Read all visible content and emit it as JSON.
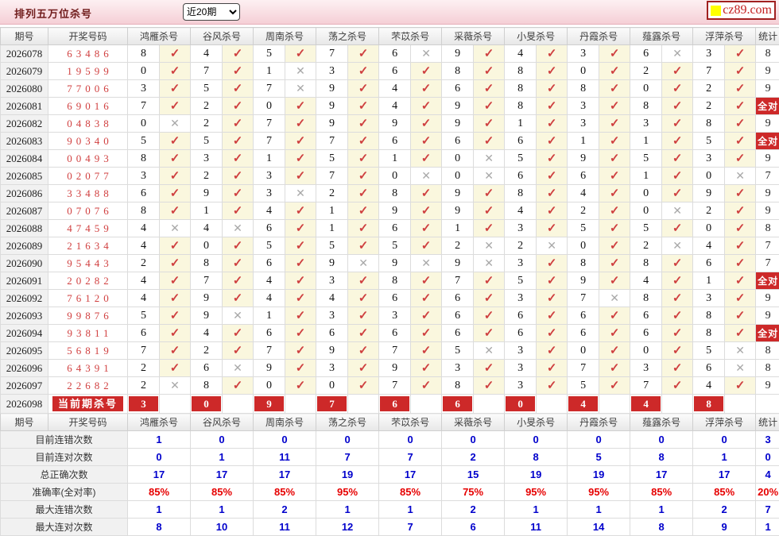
{
  "header_bar": {
    "title": "排列五万位杀号",
    "range_value": "近20期",
    "logo_text": "cz89.com"
  },
  "icons": {
    "check": "✓",
    "cross": "✕"
  },
  "colors": {
    "accent_red": "#cd2929",
    "check_red": "#cf4040",
    "cross_gray": "#a8a8a8",
    "value_blue": "#0000cc",
    "rate_red": "#e60000",
    "win_number_red": "#d14040",
    "topbar_pink": "#f5cfd6",
    "check_cell_cream": "#faf7de",
    "logo_yellow": "#ffff00"
  },
  "table": {
    "period_label": "期号",
    "number_label": "开奖号码",
    "kill_headers": [
      "鸿雁杀号",
      "谷风杀号",
      "周南杀号",
      "荡之杀号",
      "芣苡杀号",
      "采薇杀号",
      "小旻杀号",
      "丹霞杀号",
      "薤露杀号",
      "浮萍杀号"
    ],
    "stat_label": "统计",
    "all_correct_label": "全对",
    "rows": [
      {
        "period": "2026078",
        "number": "63486",
        "kills": [
          [
            8,
            1
          ],
          [
            4,
            1
          ],
          [
            5,
            1
          ],
          [
            7,
            1
          ],
          [
            6,
            0
          ],
          [
            9,
            1
          ],
          [
            4,
            1
          ],
          [
            3,
            1
          ],
          [
            6,
            0
          ],
          [
            3,
            1
          ]
        ],
        "stat": "8"
      },
      {
        "period": "2026079",
        "number": "19599",
        "kills": [
          [
            0,
            1
          ],
          [
            7,
            1
          ],
          [
            1,
            0
          ],
          [
            3,
            1
          ],
          [
            6,
            1
          ],
          [
            8,
            1
          ],
          [
            8,
            1
          ],
          [
            0,
            1
          ],
          [
            2,
            1
          ],
          [
            7,
            1
          ]
        ],
        "stat": "9"
      },
      {
        "period": "2026080",
        "number": "77006",
        "kills": [
          [
            3,
            1
          ],
          [
            5,
            1
          ],
          [
            7,
            0
          ],
          [
            9,
            1
          ],
          [
            4,
            1
          ],
          [
            6,
            1
          ],
          [
            8,
            1
          ],
          [
            8,
            1
          ],
          [
            0,
            1
          ],
          [
            2,
            1
          ]
        ],
        "stat": "9"
      },
      {
        "period": "2026081",
        "number": "69016",
        "kills": [
          [
            7,
            1
          ],
          [
            2,
            1
          ],
          [
            0,
            1
          ],
          [
            9,
            1
          ],
          [
            4,
            1
          ],
          [
            9,
            1
          ],
          [
            8,
            1
          ],
          [
            3,
            1
          ],
          [
            8,
            1
          ],
          [
            2,
            1
          ]
        ],
        "stat": "全对"
      },
      {
        "period": "2026082",
        "number": "04838",
        "kills": [
          [
            0,
            0
          ],
          [
            2,
            1
          ],
          [
            7,
            1
          ],
          [
            9,
            1
          ],
          [
            9,
            1
          ],
          [
            9,
            1
          ],
          [
            1,
            1
          ],
          [
            3,
            1
          ],
          [
            3,
            1
          ],
          [
            8,
            1
          ]
        ],
        "stat": "9"
      },
      {
        "period": "2026083",
        "number": "90340",
        "kills": [
          [
            5,
            1
          ],
          [
            5,
            1
          ],
          [
            7,
            1
          ],
          [
            7,
            1
          ],
          [
            6,
            1
          ],
          [
            6,
            1
          ],
          [
            6,
            1
          ],
          [
            1,
            1
          ],
          [
            1,
            1
          ],
          [
            5,
            1
          ]
        ],
        "stat": "全对"
      },
      {
        "period": "2026084",
        "number": "00493",
        "kills": [
          [
            8,
            1
          ],
          [
            3,
            1
          ],
          [
            1,
            1
          ],
          [
            5,
            1
          ],
          [
            1,
            1
          ],
          [
            0,
            0
          ],
          [
            5,
            1
          ],
          [
            9,
            1
          ],
          [
            5,
            1
          ],
          [
            3,
            1
          ]
        ],
        "stat": "9"
      },
      {
        "period": "2026085",
        "number": "02077",
        "kills": [
          [
            3,
            1
          ],
          [
            2,
            1
          ],
          [
            3,
            1
          ],
          [
            7,
            1
          ],
          [
            0,
            0
          ],
          [
            0,
            0
          ],
          [
            6,
            1
          ],
          [
            6,
            1
          ],
          [
            1,
            1
          ],
          [
            0,
            0
          ]
        ],
        "stat": "7"
      },
      {
        "period": "2026086",
        "number": "33488",
        "kills": [
          [
            6,
            1
          ],
          [
            9,
            1
          ],
          [
            3,
            0
          ],
          [
            2,
            1
          ],
          [
            8,
            1
          ],
          [
            9,
            1
          ],
          [
            8,
            1
          ],
          [
            4,
            1
          ],
          [
            0,
            1
          ],
          [
            9,
            1
          ]
        ],
        "stat": "9"
      },
      {
        "period": "2026087",
        "number": "07076",
        "kills": [
          [
            8,
            1
          ],
          [
            1,
            1
          ],
          [
            4,
            1
          ],
          [
            1,
            1
          ],
          [
            9,
            1
          ],
          [
            9,
            1
          ],
          [
            4,
            1
          ],
          [
            2,
            1
          ],
          [
            0,
            0
          ],
          [
            2,
            1
          ]
        ],
        "stat": "9"
      },
      {
        "period": "2026088",
        "number": "47459",
        "kills": [
          [
            4,
            0
          ],
          [
            4,
            0
          ],
          [
            6,
            1
          ],
          [
            1,
            1
          ],
          [
            6,
            1
          ],
          [
            1,
            1
          ],
          [
            3,
            1
          ],
          [
            5,
            1
          ],
          [
            5,
            1
          ],
          [
            0,
            1
          ]
        ],
        "stat": "8"
      },
      {
        "period": "2026089",
        "number": "21634",
        "kills": [
          [
            4,
            1
          ],
          [
            0,
            1
          ],
          [
            5,
            1
          ],
          [
            5,
            1
          ],
          [
            5,
            1
          ],
          [
            2,
            0
          ],
          [
            2,
            0
          ],
          [
            0,
            1
          ],
          [
            2,
            0
          ],
          [
            4,
            1
          ]
        ],
        "stat": "7"
      },
      {
        "period": "2026090",
        "number": "95443",
        "kills": [
          [
            2,
            1
          ],
          [
            8,
            1
          ],
          [
            6,
            1
          ],
          [
            9,
            0
          ],
          [
            9,
            0
          ],
          [
            9,
            0
          ],
          [
            3,
            1
          ],
          [
            8,
            1
          ],
          [
            8,
            1
          ],
          [
            6,
            1
          ]
        ],
        "stat": "7"
      },
      {
        "period": "2026091",
        "number": "20282",
        "kills": [
          [
            4,
            1
          ],
          [
            7,
            1
          ],
          [
            4,
            1
          ],
          [
            3,
            1
          ],
          [
            8,
            1
          ],
          [
            7,
            1
          ],
          [
            5,
            1
          ],
          [
            9,
            1
          ],
          [
            4,
            1
          ],
          [
            1,
            1
          ]
        ],
        "stat": "全对"
      },
      {
        "period": "2026092",
        "number": "76120",
        "kills": [
          [
            4,
            1
          ],
          [
            9,
            1
          ],
          [
            4,
            1
          ],
          [
            4,
            1
          ],
          [
            6,
            1
          ],
          [
            6,
            1
          ],
          [
            3,
            1
          ],
          [
            7,
            0
          ],
          [
            8,
            1
          ],
          [
            3,
            1
          ]
        ],
        "stat": "9"
      },
      {
        "period": "2026093",
        "number": "99876",
        "kills": [
          [
            5,
            1
          ],
          [
            9,
            0
          ],
          [
            1,
            1
          ],
          [
            3,
            1
          ],
          [
            3,
            1
          ],
          [
            6,
            1
          ],
          [
            6,
            1
          ],
          [
            6,
            1
          ],
          [
            6,
            1
          ],
          [
            8,
            1
          ]
        ],
        "stat": "9"
      },
      {
        "period": "2026094",
        "number": "93811",
        "kills": [
          [
            6,
            1
          ],
          [
            4,
            1
          ],
          [
            6,
            1
          ],
          [
            6,
            1
          ],
          [
            6,
            1
          ],
          [
            6,
            1
          ],
          [
            6,
            1
          ],
          [
            6,
            1
          ],
          [
            6,
            1
          ],
          [
            8,
            1
          ]
        ],
        "stat": "全对"
      },
      {
        "period": "2026095",
        "number": "56819",
        "kills": [
          [
            7,
            1
          ],
          [
            2,
            1
          ],
          [
            7,
            1
          ],
          [
            9,
            1
          ],
          [
            7,
            1
          ],
          [
            5,
            0
          ],
          [
            3,
            1
          ],
          [
            0,
            1
          ],
          [
            0,
            1
          ],
          [
            5,
            0
          ]
        ],
        "stat": "8"
      },
      {
        "period": "2026096",
        "number": "64391",
        "kills": [
          [
            2,
            1
          ],
          [
            6,
            0
          ],
          [
            9,
            1
          ],
          [
            3,
            1
          ],
          [
            9,
            1
          ],
          [
            3,
            1
          ],
          [
            3,
            1
          ],
          [
            7,
            1
          ],
          [
            3,
            1
          ],
          [
            6,
            0
          ]
        ],
        "stat": "8"
      },
      {
        "period": "2026097",
        "number": "22682",
        "kills": [
          [
            2,
            0
          ],
          [
            8,
            1
          ],
          [
            0,
            1
          ],
          [
            0,
            1
          ],
          [
            7,
            1
          ],
          [
            8,
            1
          ],
          [
            3,
            1
          ],
          [
            5,
            1
          ],
          [
            7,
            1
          ],
          [
            4,
            1
          ]
        ],
        "stat": "9"
      }
    ],
    "current_row": {
      "period": "2026098",
      "label": "当前期杀号",
      "kills": [
        3,
        0,
        9,
        7,
        6,
        6,
        0,
        4,
        4,
        8
      ]
    },
    "summary": [
      {
        "label": "目前连错次数",
        "values": [
          "1",
          "0",
          "0",
          "0",
          "0",
          "0",
          "0",
          "0",
          "0",
          "0"
        ],
        "stat": "3",
        "red": false
      },
      {
        "label": "目前连对次数",
        "values": [
          "0",
          "1",
          "11",
          "7",
          "7",
          "2",
          "8",
          "5",
          "8",
          "1"
        ],
        "stat": "0",
        "red": false
      },
      {
        "label": "总正确次数",
        "values": [
          "17",
          "17",
          "17",
          "19",
          "17",
          "15",
          "19",
          "19",
          "17",
          "17"
        ],
        "stat": "4",
        "red": false
      },
      {
        "label": "准确率(全对率)",
        "values": [
          "85%",
          "85%",
          "85%",
          "95%",
          "85%",
          "75%",
          "95%",
          "95%",
          "85%",
          "85%"
        ],
        "stat": "20%",
        "red": true
      },
      {
        "label": "最大连错次数",
        "values": [
          "1",
          "1",
          "2",
          "1",
          "1",
          "2",
          "1",
          "1",
          "1",
          "2"
        ],
        "stat": "7",
        "red": false
      },
      {
        "label": "最大连对次数",
        "values": [
          "8",
          "10",
          "11",
          "12",
          "7",
          "6",
          "11",
          "14",
          "8",
          "9"
        ],
        "stat": "1",
        "red": false
      }
    ]
  }
}
